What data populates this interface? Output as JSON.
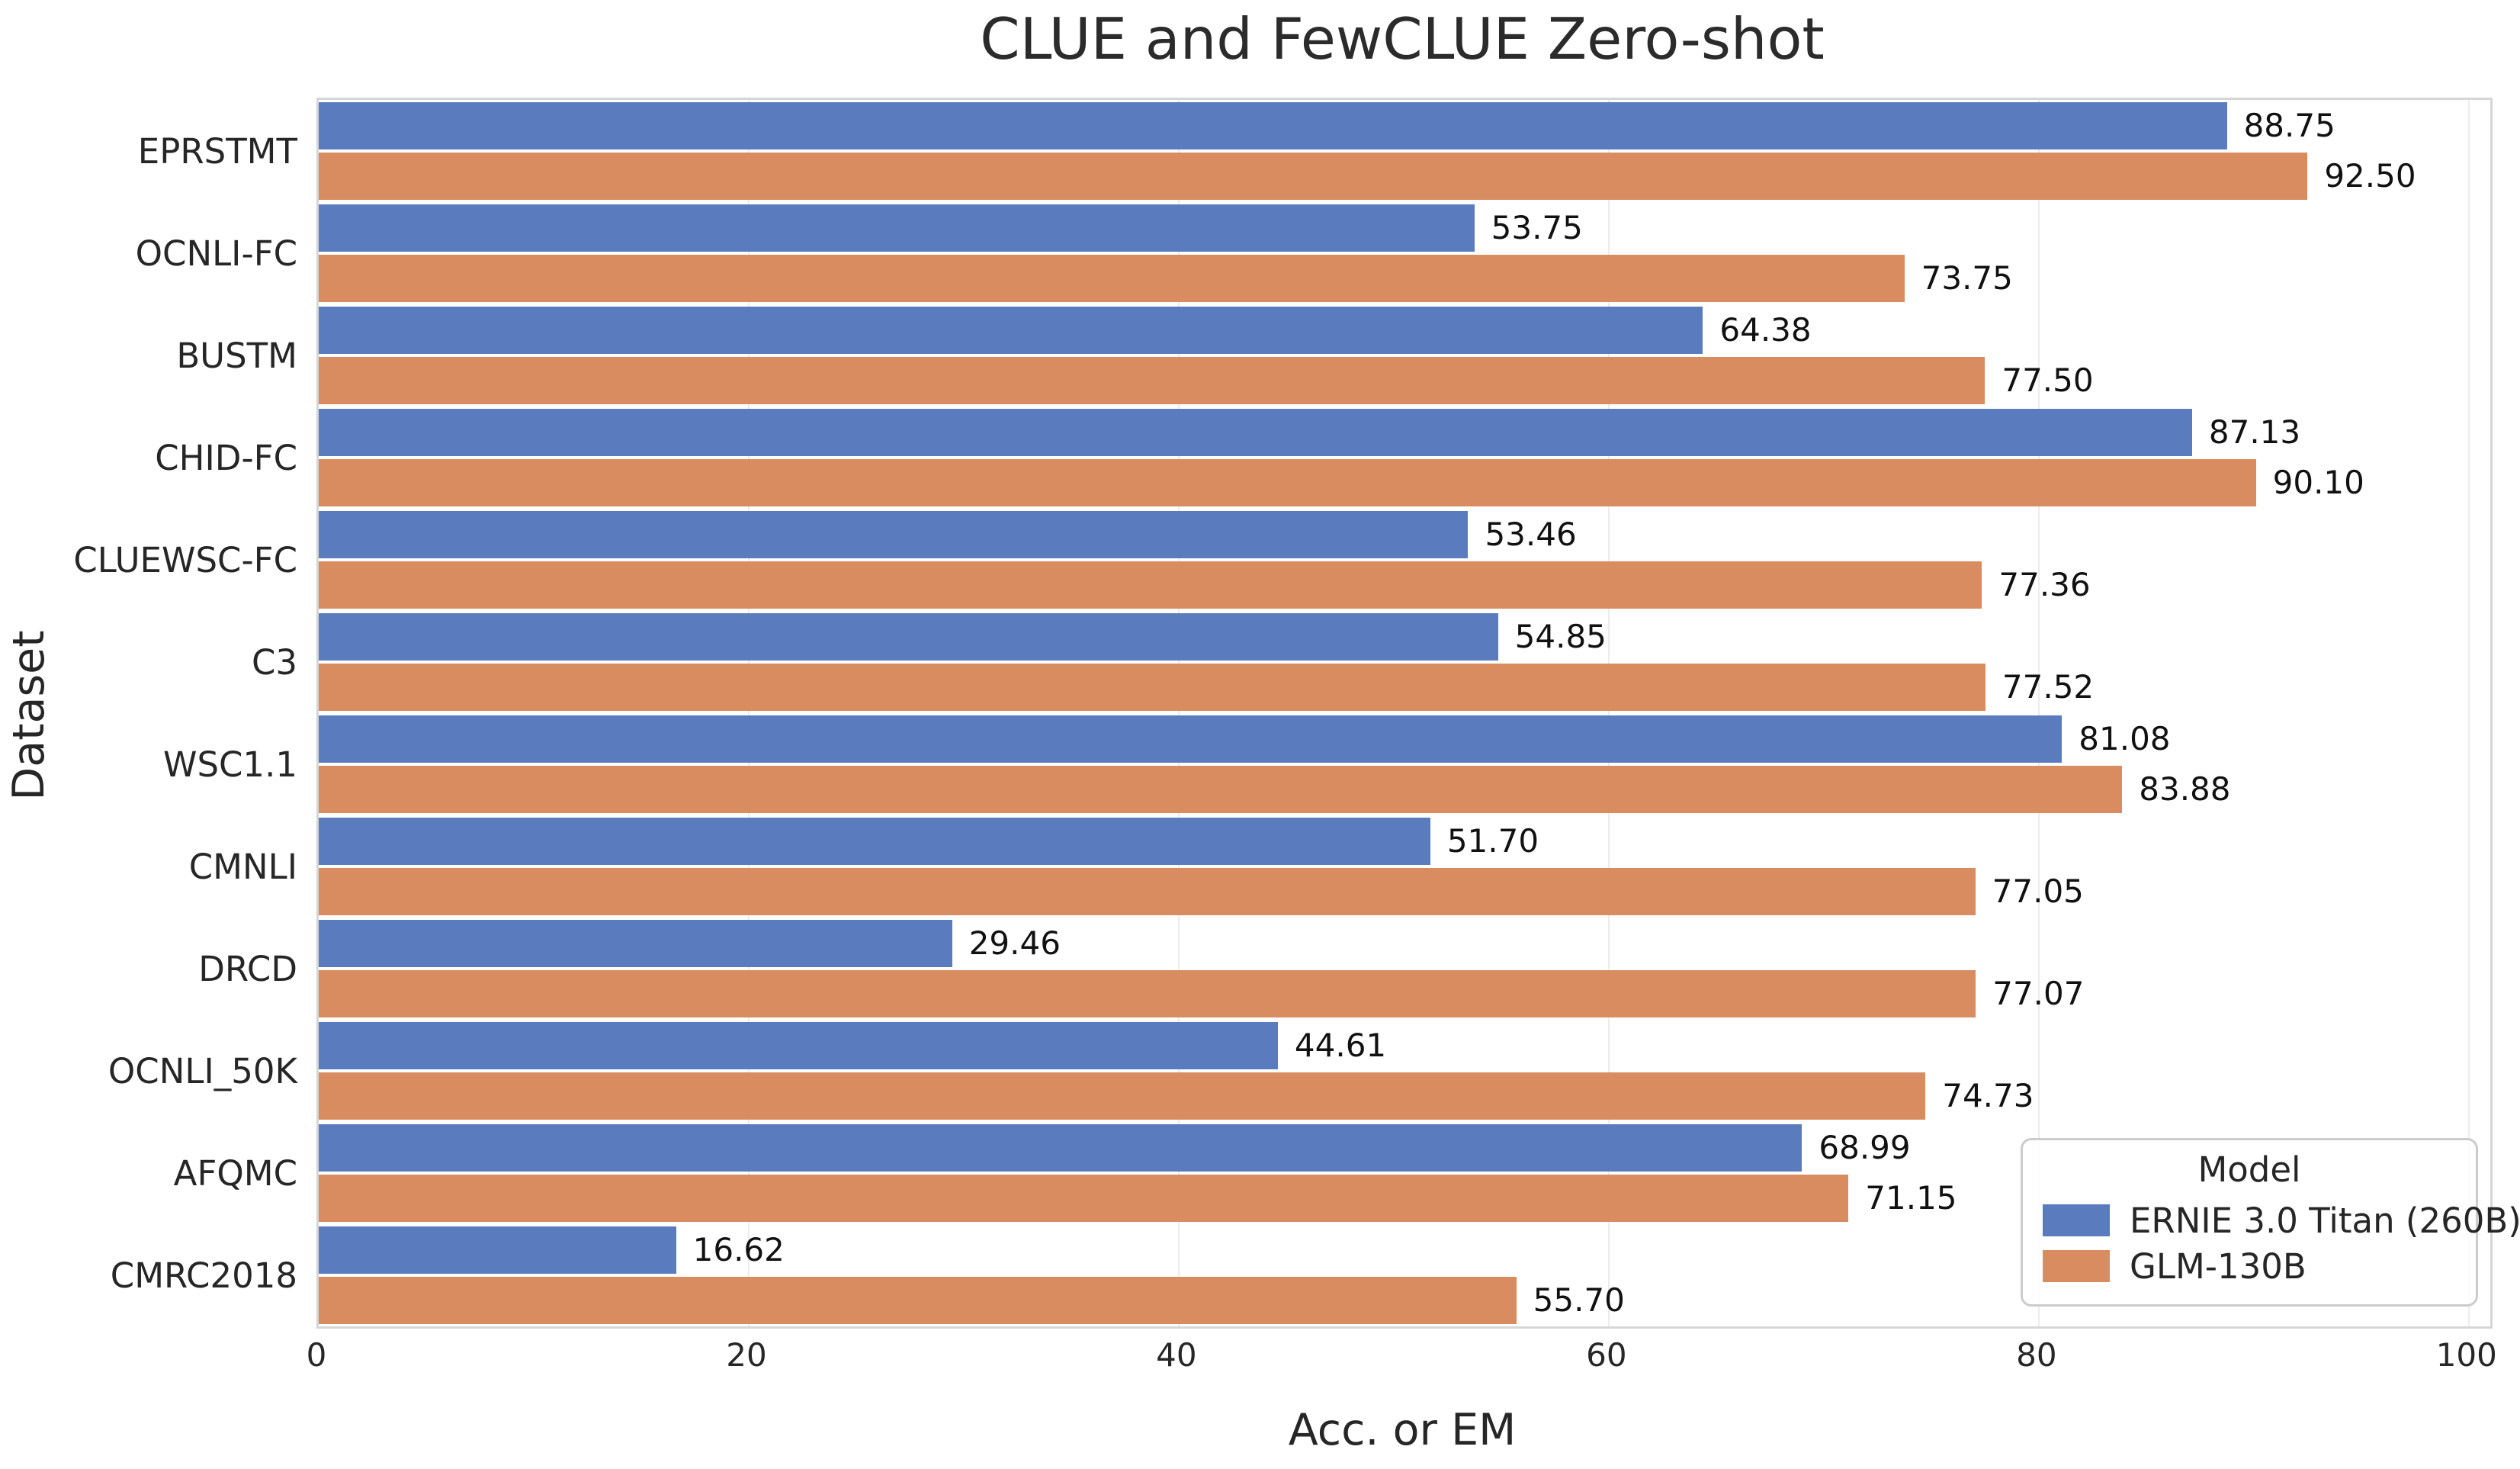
{
  "chart_data": {
    "type": "bar",
    "orientation": "horizontal",
    "title": "CLUE and FewCLUE Zero-shot",
    "xlabel": "Acc. or EM",
    "ylabel": "Dataset",
    "categories": [
      "EPRSTMT",
      "OCNLI-FC",
      "BUSTM",
      "CHID-FC",
      "CLUEWSC-FC",
      "C3",
      "WSC1.1",
      "CMNLI",
      "DRCD",
      "OCNLI_50K",
      "AFQMC",
      "CMRC2018"
    ],
    "series": [
      {
        "name": "ERNIE 3.0 Titan (260B)",
        "color": "#5a7cbe",
        "values": [
          88.75,
          53.75,
          64.38,
          87.13,
          53.46,
          54.85,
          81.08,
          51.7,
          29.46,
          44.61,
          68.99,
          16.62
        ]
      },
      {
        "name": "GLM-130B",
        "color": "#d88c60",
        "values": [
          92.5,
          73.75,
          77.5,
          90.1,
          77.36,
          77.52,
          83.88,
          77.05,
          77.07,
          74.73,
          71.15,
          55.7
        ]
      }
    ],
    "xlim": [
      0,
      101
    ],
    "xticks": [
      0,
      20,
      40,
      60,
      80,
      100
    ],
    "legend": {
      "title": "Model",
      "position": "lower right"
    },
    "grid": true,
    "value_labels": true,
    "value_label_decimals": 2,
    "colors": {
      "spine": "#d6d6d6",
      "gridline": "#ececec",
      "text": "#262626",
      "background": "#ffffff"
    }
  }
}
